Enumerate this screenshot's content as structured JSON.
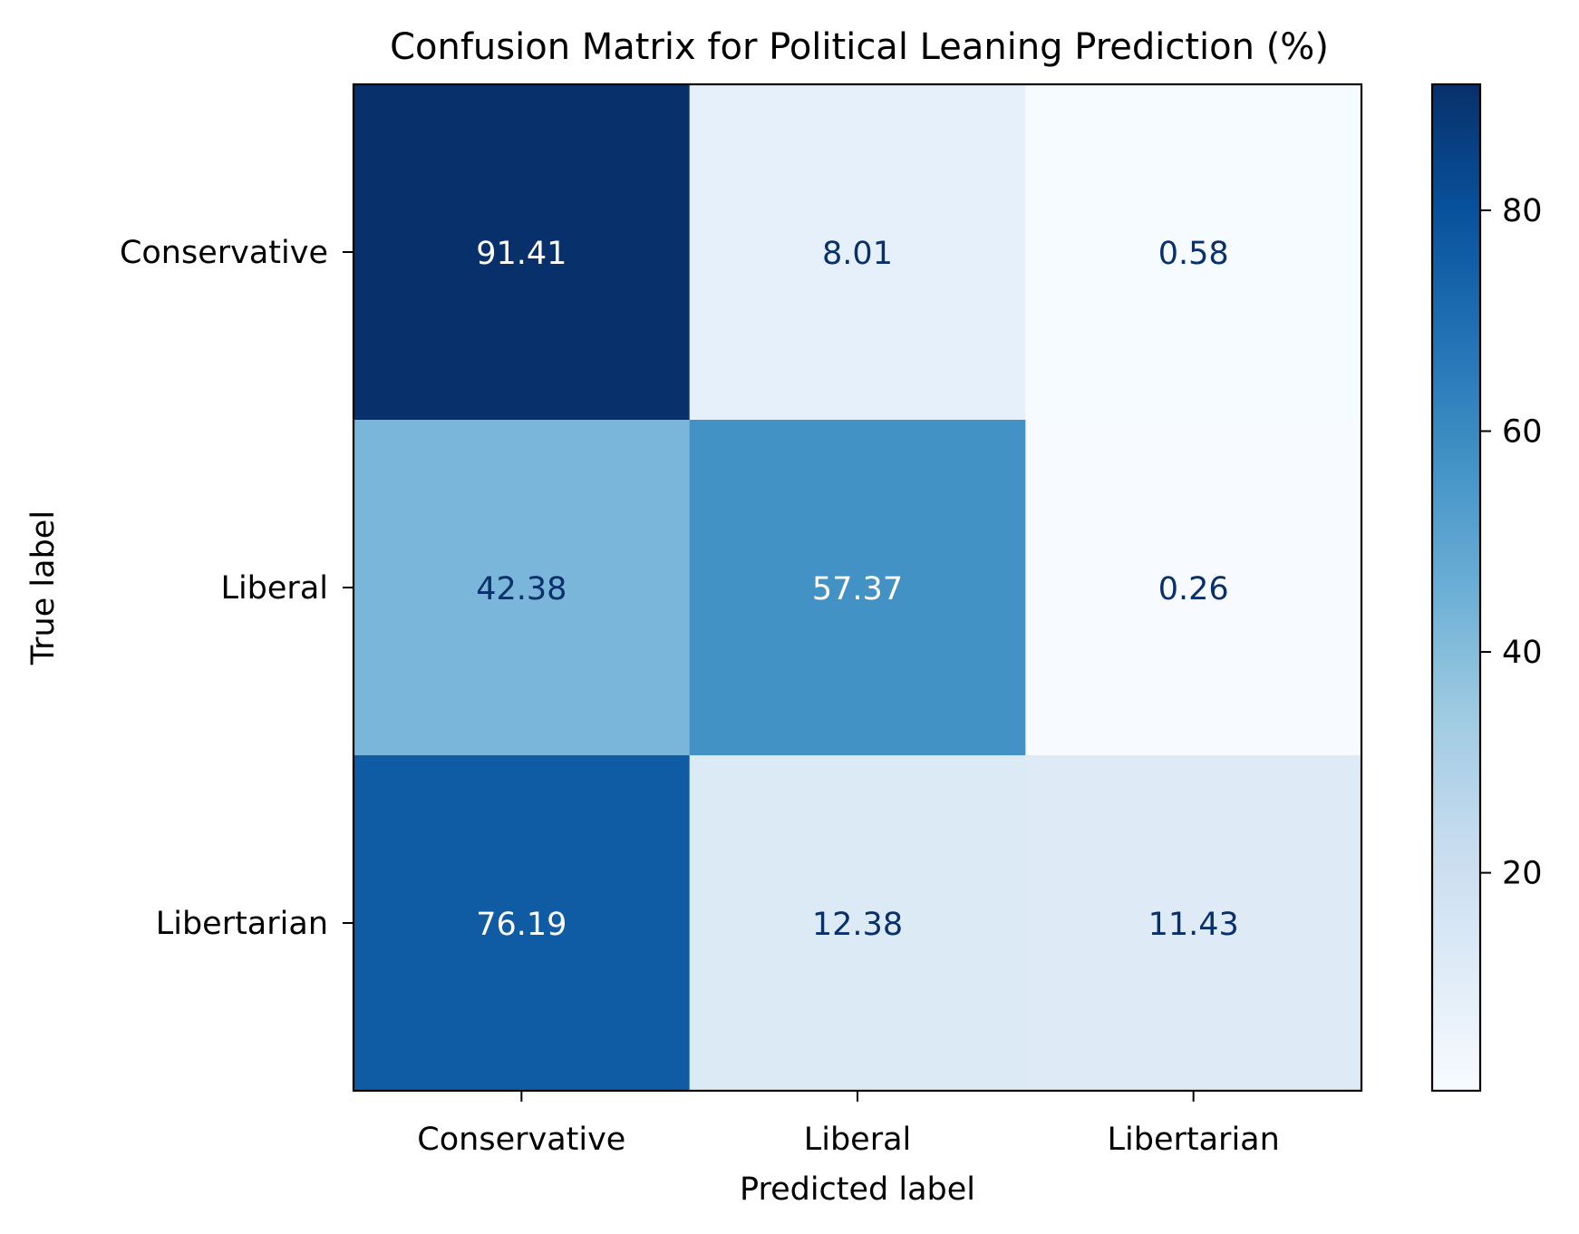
{
  "chart_data": {
    "type": "heatmap",
    "title": "Confusion Matrix for Political Leaning Prediction (%)",
    "xlabel": "Predicted label",
    "ylabel": "True label",
    "x_categories": [
      "Conservative",
      "Liberal",
      "Libertarian"
    ],
    "y_categories": [
      "Conservative",
      "Liberal",
      "Libertarian"
    ],
    "values": [
      [
        91.41,
        8.01,
        0.58
      ],
      [
        42.38,
        57.37,
        0.26
      ],
      [
        76.19,
        12.38,
        11.43
      ]
    ],
    "value_labels": [
      [
        "91.41",
        "8.01",
        "0.58"
      ],
      [
        "42.38",
        "57.37",
        "0.26"
      ],
      [
        "76.19",
        "12.38",
        "11.43"
      ]
    ],
    "colormap": "Blues",
    "color_range": [
      0.26,
      91.41
    ],
    "colorbar_ticks": [
      20,
      40,
      60,
      80
    ],
    "colorbar_tick_labels": [
      "20",
      "40",
      "60",
      "80"
    ],
    "colors": {
      "dark_text": "#08306b",
      "light_text": "#ffffff"
    }
  }
}
